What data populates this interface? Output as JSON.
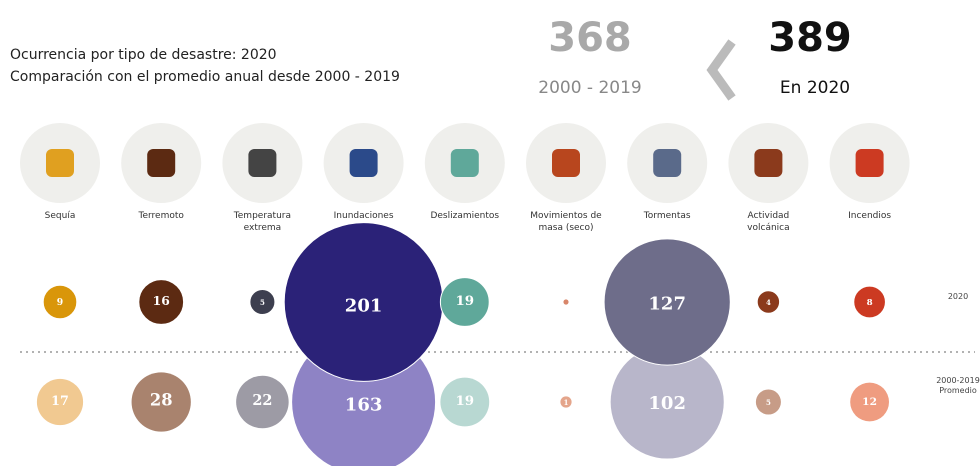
{
  "chart_data": {
    "type": "bubble",
    "title": "Ocurrencia por tipo de desastre: 2020",
    "subtitle": "Comparación con el promedio anual desde 2000 - 2019",
    "summary": {
      "previous_value": 368,
      "previous_label": "2000 - 2019",
      "current_value": 389,
      "current_label": "En 2020"
    },
    "categories": [
      "Sequía",
      "Terremoto",
      "Temperatura extrema",
      "Inundaciones",
      "Deslizamientos",
      "Movimientos de masa (seco)",
      "Tormentas",
      "Actividad volcánica",
      "Incendios"
    ],
    "series": [
      {
        "name": "2000-2019 Promedio",
        "values": [
          17,
          28,
          22,
          163,
          19,
          1,
          102,
          5,
          12
        ],
        "colors": [
          "#f1c991",
          "#a9836e",
          "#9d9ba5",
          "#8e83c5",
          "#b8d8d2",
          "#e4a58b",
          "#b8b6ca",
          "#c79c87",
          "#ef9c80"
        ]
      },
      {
        "name": "2020",
        "values": [
          9,
          16,
          5,
          201,
          19,
          0.3,
          127,
          4,
          8
        ],
        "colors": [
          "#d9960a",
          "#5c2a12",
          "#3d3f4f",
          "#2b2278",
          "#5fa89a",
          "#d8866a",
          "#6e6d8a",
          "#8b3a1c",
          "#cc3a22"
        ]
      }
    ]
  }
}
